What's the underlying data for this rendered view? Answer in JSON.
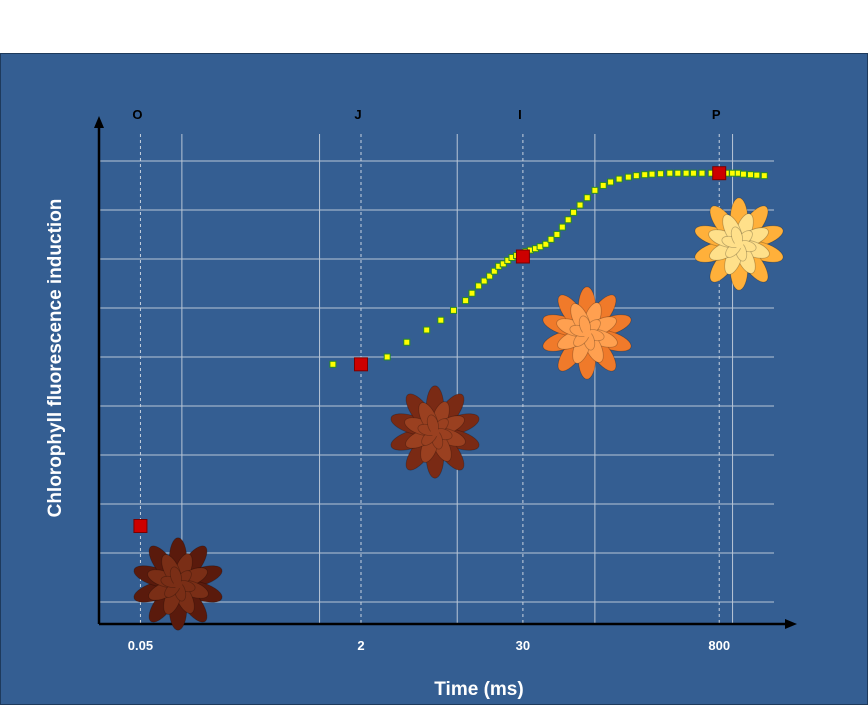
{
  "chart_data": {
    "type": "scatter",
    "title": "",
    "xlabel": "Time (ms)",
    "ylabel": "Chlorophyll fluorescence induction",
    "x_scale": "log",
    "xlim": [
      0.025,
      2000
    ],
    "ylim": [
      0,
      10
    ],
    "grid": true,
    "x_ticks": [
      {
        "value": 0.05,
        "label": "0.05"
      },
      {
        "value": 2,
        "label": "2"
      },
      {
        "value": 30,
        "label": "30"
      },
      {
        "value": 800,
        "label": "800"
      }
    ],
    "phases": [
      {
        "label": "O",
        "x": 0.05,
        "y": 2.0
      },
      {
        "label": "J",
        "x": 2,
        "y": 5.3
      },
      {
        "label": "I",
        "x": 30,
        "y": 7.5
      },
      {
        "label": "P",
        "x": 800,
        "y": 9.2
      }
    ],
    "series": [
      {
        "marker": "square",
        "color": "#ffff00",
        "edge_color": "#2a8a2a",
        "x": [
          1.25,
          3.1,
          4.3,
          6.0,
          7.6,
          9.4,
          11.5,
          12.8,
          14.3,
          15.7,
          17.2,
          18.6,
          20.0,
          21.6,
          23.3,
          25.0,
          27.0,
          29.0,
          31.5,
          34,
          37,
          40,
          44,
          48,
          53,
          58,
          64,
          70,
          78,
          88,
          100,
          115,
          130,
          150,
          175,
          200,
          230,
          260,
          300,
          350,
          400,
          460,
          520,
          600,
          700,
          800,
          900,
          1000,
          1100,
          1200,
          1350,
          1500,
          1700
        ],
        "y": [
          5.3,
          5.45,
          5.75,
          6.0,
          6.2,
          6.4,
          6.6,
          6.75,
          6.9,
          7.0,
          7.1,
          7.2,
          7.3,
          7.35,
          7.42,
          7.48,
          7.52,
          7.55,
          7.6,
          7.63,
          7.66,
          7.7,
          7.75,
          7.85,
          7.95,
          8.1,
          8.25,
          8.4,
          8.55,
          8.7,
          8.85,
          8.95,
          9.02,
          9.08,
          9.12,
          9.15,
          9.17,
          9.18,
          9.19,
          9.2,
          9.2,
          9.2,
          9.2,
          9.2,
          9.2,
          9.2,
          9.2,
          9.2,
          9.2,
          9.18,
          9.17,
          9.16,
          9.15
        ]
      }
    ]
  }
}
